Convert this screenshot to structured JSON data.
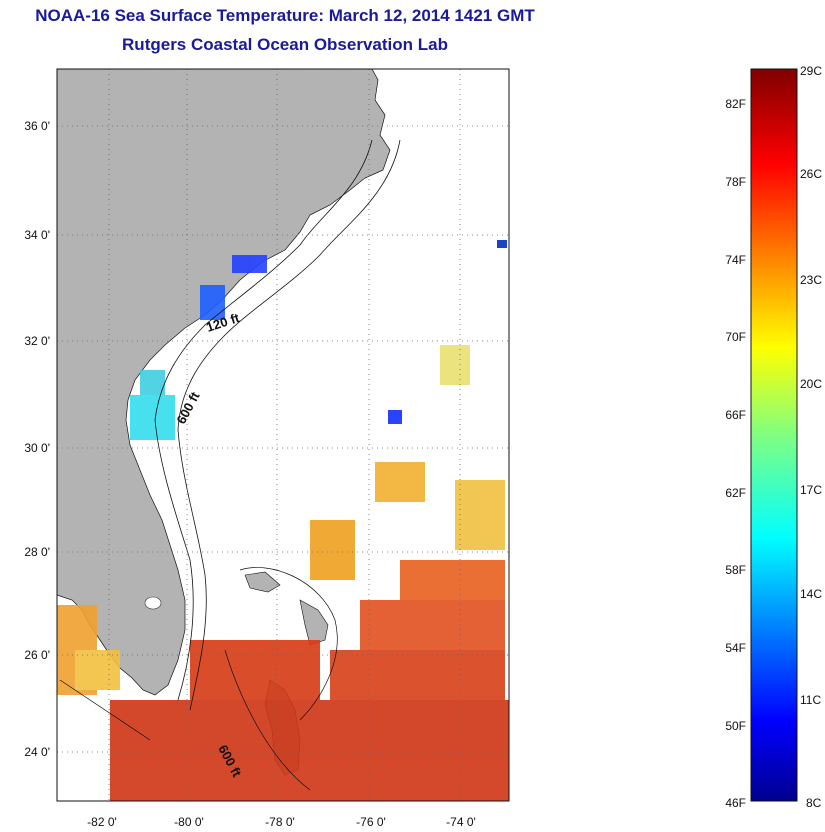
{
  "title": "NOAA-16 Sea Surface Temperature:  March 12, 2014 1421 GMT",
  "subtitle": "Rutgers Coastal Ocean Observation Lab",
  "map": {
    "lat_range": [
      23,
      37
    ],
    "lon_range": [
      -83,
      -73
    ],
    "lat_ticks": [
      "36 0'",
      "34 0'",
      "32 0'",
      "30 0'",
      "28 0'",
      "26 0'",
      "24 0'"
    ],
    "lon_ticks": [
      "-82 0'",
      "-80 0'",
      "-78 0'",
      "-76 0'",
      "-74 0'"
    ],
    "depth_labels": [
      "120 ft",
      "600 ft",
      "600 ft"
    ],
    "land_color": "#b3b3b3",
    "grid": "dotted"
  },
  "colorbar": {
    "fahrenheit_labels": [
      "82F",
      "78F",
      "74F",
      "70F",
      "66F",
      "62F",
      "58F",
      "54F",
      "50F",
      "46F"
    ],
    "celsius_labels": [
      "29C",
      "26C",
      "23C",
      "20C",
      "17C",
      "14C",
      "11C",
      "8C"
    ],
    "range_c": [
      8,
      29
    ]
  }
}
